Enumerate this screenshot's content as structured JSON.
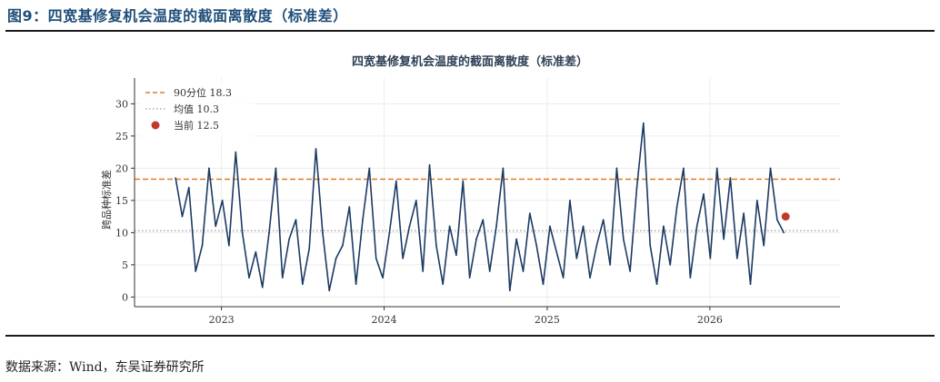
{
  "figure": {
    "title": "图9：四宽基修复机会温度的截面离散度（标准差）",
    "source": "数据来源：Wind，东吴证券研究所"
  },
  "colors": {
    "line": "#1c3a63",
    "p90": "#e07b22",
    "mean": "#9a9a9a",
    "current": "#c0392b",
    "title": "#1f4e79"
  },
  "chart_data": {
    "type": "line",
    "title": "四宽基修复机会温度的截面离散度（标准差）",
    "xlabel": "",
    "ylabel": "跨品种标准差",
    "xlim": [
      "2022-06-20",
      "2026-10-20"
    ],
    "ylim": [
      -1.5,
      34
    ],
    "yticks": [
      0,
      5,
      10,
      15,
      20,
      25,
      30
    ],
    "xticks": [
      "2023",
      "2024",
      "2025",
      "2026"
    ],
    "xtick_dates": [
      "2023-01-01",
      "2024-01-01",
      "2025-01-01",
      "2026-01-01"
    ],
    "grid": true,
    "legend_position": "upper-left",
    "reference_lines": [
      {
        "name": "90分位 18.3",
        "value": 18.3,
        "style": "dashed"
      },
      {
        "name": "均值 10.3",
        "value": 10.3,
        "style": "dotted"
      }
    ],
    "current_point": {
      "name": "当前 12.5",
      "date": "2026-06-20",
      "value": 12.5
    },
    "series": [
      {
        "x": [
          "2022-09-20",
          "2022-10-05",
          "2022-10-20",
          "2022-11-04",
          "2022-11-19",
          "2022-12-04",
          "2022-12-19",
          "2023-01-03",
          "2023-01-18",
          "2023-02-02",
          "2023-02-17",
          "2023-03-04",
          "2023-03-19",
          "2023-04-03",
          "2023-04-18",
          "2023-05-03",
          "2023-05-18",
          "2023-06-02",
          "2023-06-17",
          "2023-07-02",
          "2023-07-17",
          "2023-08-01",
          "2023-08-16",
          "2023-08-31",
          "2023-09-15",
          "2023-09-30",
          "2023-10-15",
          "2023-10-30",
          "2023-11-14",
          "2023-11-29",
          "2023-12-14",
          "2023-12-29",
          "2024-01-13",
          "2024-01-28",
          "2024-02-12",
          "2024-02-27",
          "2024-03-13",
          "2024-03-28",
          "2024-04-12",
          "2024-04-27",
          "2024-05-12",
          "2024-05-27",
          "2024-06-11",
          "2024-06-26",
          "2024-07-11",
          "2024-07-26",
          "2024-08-10",
          "2024-08-25",
          "2024-09-09",
          "2024-09-24",
          "2024-10-09",
          "2024-10-24",
          "2024-11-08",
          "2024-11-23",
          "2024-12-08",
          "2024-12-23",
          "2025-01-07",
          "2025-01-22",
          "2025-02-06",
          "2025-02-21",
          "2025-03-08",
          "2025-03-23",
          "2025-04-07",
          "2025-04-22",
          "2025-05-07",
          "2025-05-22",
          "2025-06-06",
          "2025-06-21",
          "2025-07-06",
          "2025-07-21",
          "2025-08-05",
          "2025-08-20",
          "2025-09-04",
          "2025-09-19",
          "2025-10-04",
          "2025-10-19",
          "2025-11-03",
          "2025-11-18",
          "2025-12-03",
          "2025-12-18",
          "2026-01-02",
          "2026-01-17",
          "2026-02-01",
          "2026-02-16",
          "2026-03-03",
          "2026-03-18",
          "2026-04-02",
          "2026-04-17",
          "2026-05-02",
          "2026-05-17",
          "2026-06-01",
          "2026-06-16"
        ],
        "values": [
          18.5,
          12.5,
          17.0,
          4.0,
          8.0,
          20.0,
          11.0,
          15.0,
          8.0,
          22.5,
          10.0,
          3.0,
          7.0,
          1.5,
          10.0,
          20.0,
          3.0,
          9.0,
          12.0,
          2.0,
          7.5,
          23.0,
          10.0,
          1.0,
          6.0,
          8.0,
          14.0,
          2.0,
          12.0,
          20.0,
          6.0,
          3.0,
          10.0,
          18.0,
          6.0,
          11.0,
          15.0,
          4.0,
          20.5,
          8.0,
          2.0,
          11.0,
          6.5,
          18.0,
          3.0,
          9.0,
          12.0,
          4.0,
          11.0,
          20.0,
          1.0,
          9.0,
          4.0,
          13.0,
          8.0,
          2.0,
          11.0,
          7.0,
          3.0,
          15.0,
          6.0,
          11.0,
          3.0,
          8.0,
          12.0,
          5.0,
          20.0,
          9.0,
          4.0,
          17.0,
          27.0,
          8.0,
          2.0,
          11.0,
          5.0,
          14.0,
          20.0,
          3.0,
          11.0,
          16.0,
          6.0,
          20.0,
          9.0,
          18.5,
          6.0,
          13.0,
          2.0,
          15.0,
          8.0,
          20.0,
          12.0,
          10.0
        ]
      }
    ]
  }
}
